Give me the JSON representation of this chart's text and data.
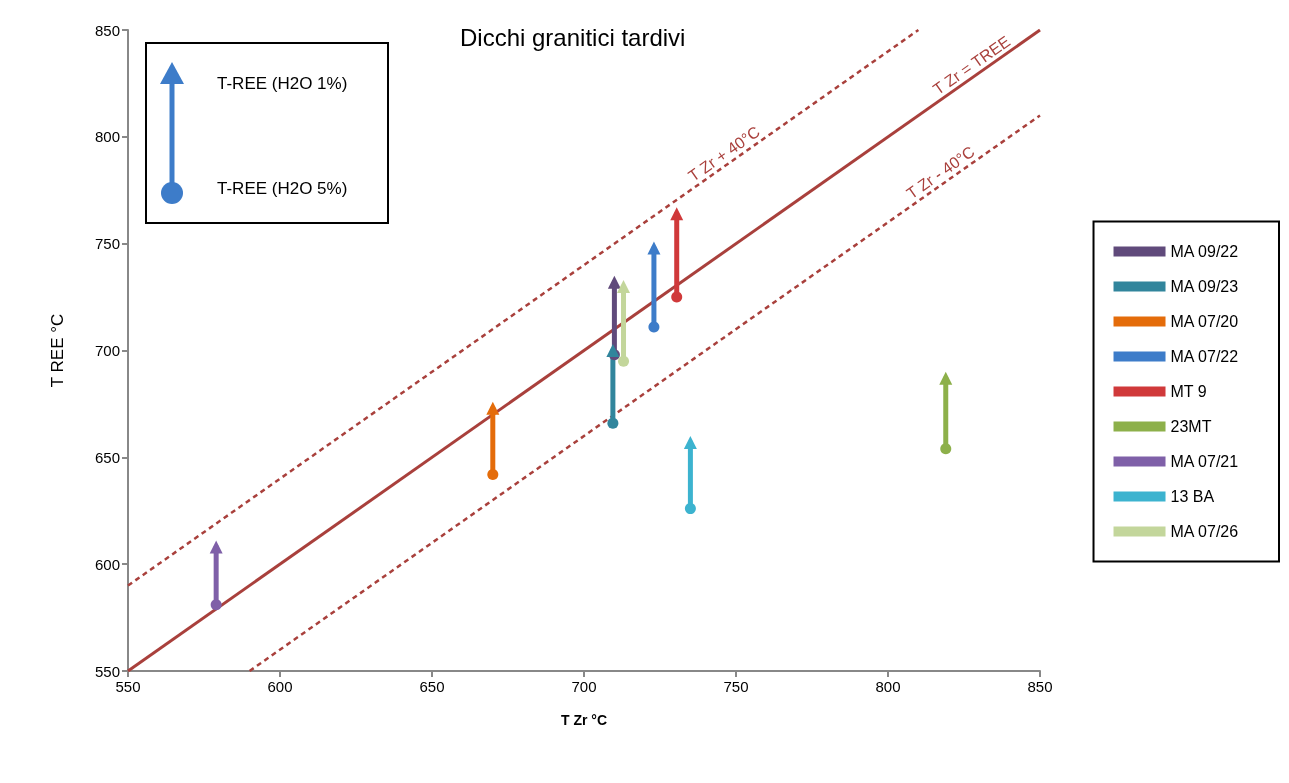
{
  "chart_data": {
    "type": "line",
    "title": "Dicchi granitici tardivi",
    "xlabel": "T Zr °C",
    "ylabel": "T REE °C",
    "xlim": [
      550,
      850
    ],
    "xticks": [
      550,
      600,
      650,
      700,
      750,
      800,
      850
    ],
    "ylim": [
      550,
      850
    ],
    "yticks": [
      550,
      600,
      650,
      700,
      750,
      800,
      850
    ],
    "grid": false,
    "legend": "right",
    "marker": "circle",
    "annotations": [
      "T-REE  (H2O 1%)",
      "T-REE  (H2O 5%)"
    ],
    "series": [
      {
        "name": "MA 09/22",
        "color": "#604a7b",
        "x": [
          710,
          710
        ],
        "values": [
          698,
          732
        ]
      },
      {
        "name": "MA 09/23",
        "color": "#31859c",
        "x": [
          709.5,
          709.5
        ],
        "values": [
          666,
          700
        ]
      },
      {
        "name": "MA 07/20",
        "color": "#e46c0a",
        "x": [
          670,
          670
        ],
        "values": [
          642,
          673
        ]
      },
      {
        "name": "MA 07/22",
        "color": "#3d7cc9",
        "x": [
          723,
          723
        ],
        "values": [
          711,
          748
        ]
      },
      {
        "name": "MT 9",
        "color": "#d0393a",
        "x": [
          730.5,
          730.5
        ],
        "values": [
          725,
          764
        ]
      },
      {
        "name": "23MT",
        "color": "#8db04a",
        "x": [
          819,
          819
        ],
        "values": [
          654,
          687
        ]
      },
      {
        "name": "MA 07/21",
        "color": "#7f60a8",
        "x": [
          579,
          579
        ],
        "values": [
          581,
          608
        ]
      },
      {
        "name": "13 BA",
        "color": "#3cb3cf",
        "x": [
          735,
          735
        ],
        "values": [
          626,
          657
        ]
      },
      {
        "name": "MA 07/26",
        "color": "#c3d69b",
        "x": [
          713,
          713
        ],
        "values": [
          695,
          730
        ]
      },
      {
        "name": "T Zr + 40°C",
        "type": "line",
        "marker": "none",
        "color": "#a9403c",
        "line_style": "dashed",
        "x": [
          550,
          810
        ],
        "values": [
          590,
          850
        ]
      },
      {
        "name": "T Zr = TREE",
        "type": "line",
        "marker": "none",
        "color": "#a9403c",
        "line_style": "solid",
        "x": [
          550,
          850
        ],
        "values": [
          550,
          850
        ]
      },
      {
        "name": "T Zr - 40°C",
        "type": "line",
        "marker": "none",
        "color": "#a9403c",
        "line_style": "dashed",
        "x": [
          590,
          850
        ],
        "values": [
          550,
          810
        ]
      }
    ]
  }
}
